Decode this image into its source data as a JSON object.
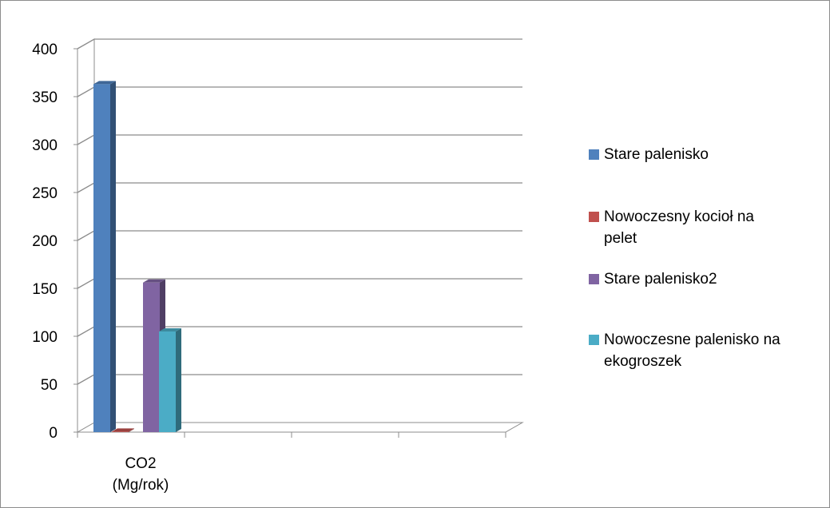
{
  "chart_data": {
    "type": "bar",
    "style": "3d-clustered-column",
    "categories": [
      "CO2\n(Mg/rok)",
      "",
      "",
      ""
    ],
    "category_label_lines": [
      "CO2",
      "(Mg/rok)"
    ],
    "series": [
      {
        "name": "Stare palenisko",
        "color": "#4F81BD",
        "values": [
          363,
          null,
          null,
          null
        ]
      },
      {
        "name": "Nowoczesny kocioł na pelet",
        "color": "#C0504D",
        "values": [
          0.5,
          null,
          null,
          null
        ]
      },
      {
        "name": "Stare palenisko2",
        "color": "#8064A2",
        "values": [
          156,
          null,
          null,
          null
        ]
      },
      {
        "name": "Nowoczesne palenisko na ekogroszek",
        "color": "#4BACC6",
        "values": [
          105,
          null,
          null,
          null
        ]
      }
    ],
    "y_ticks": [
      "0",
      "50",
      "100",
      "150",
      "200",
      "250",
      "300",
      "350",
      "400"
    ],
    "ylim": [
      0,
      400
    ],
    "grid": true,
    "legend_position": "right",
    "title": "",
    "xlabel": "",
    "ylabel": ""
  }
}
